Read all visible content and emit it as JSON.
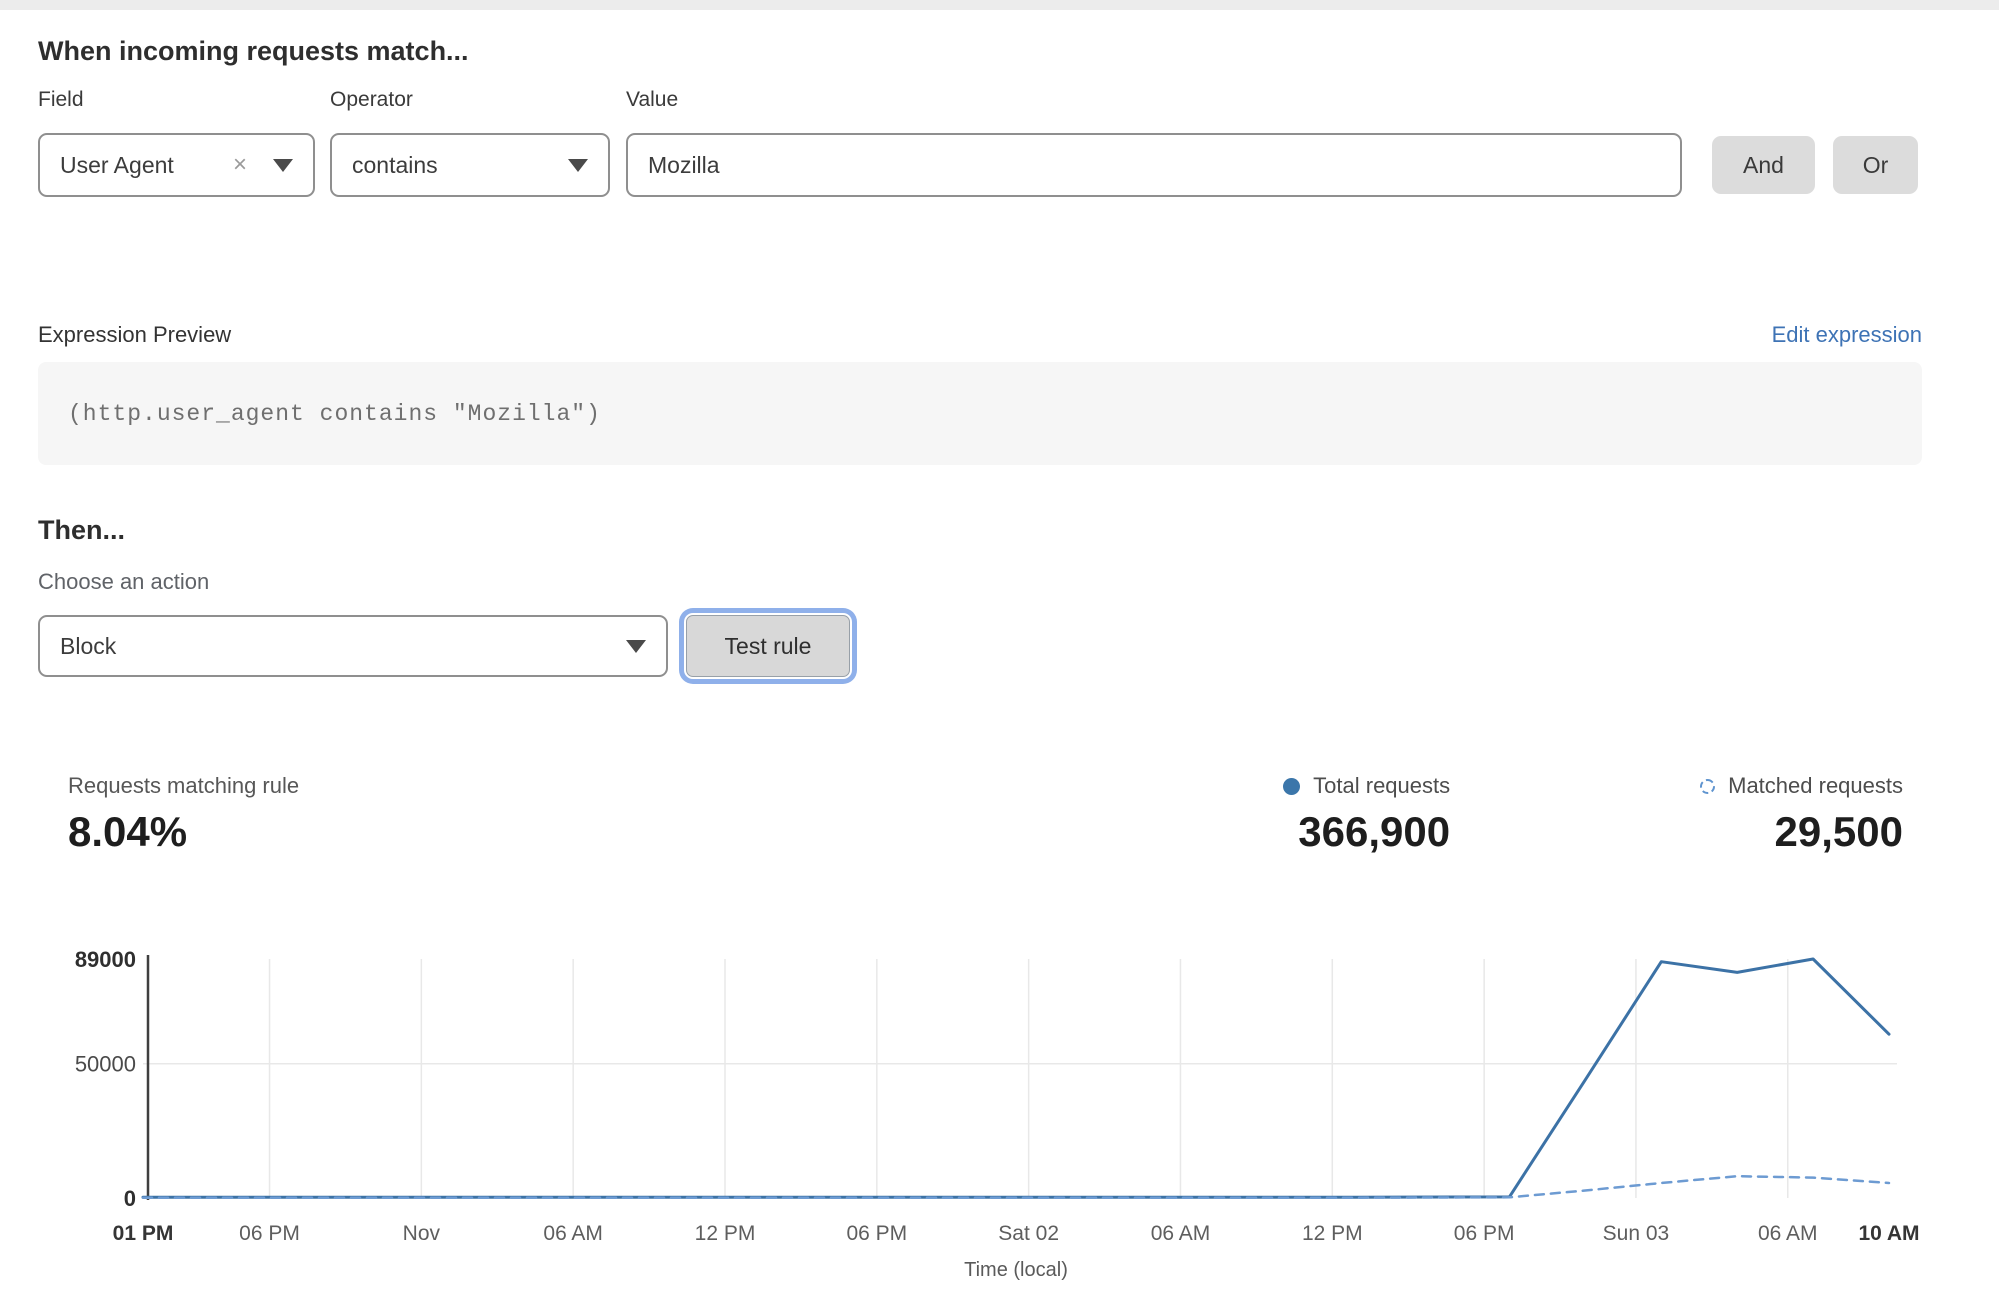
{
  "match_section": {
    "heading": "When incoming requests match...",
    "field": {
      "label": "Field",
      "value": "User Agent",
      "clear_icon": "×"
    },
    "operator": {
      "label": "Operator",
      "value": "contains"
    },
    "value": {
      "label": "Value",
      "value": "Mozilla"
    },
    "and_label": "And",
    "or_label": "Or"
  },
  "expression": {
    "label": "Expression Preview",
    "edit_link": "Edit expression",
    "code": "(http.user_agent contains \"Mozilla\")"
  },
  "then_section": {
    "heading": "Then...",
    "action_label": "Choose an action",
    "action_value": "Block",
    "test_button": "Test rule"
  },
  "stats": {
    "matching": {
      "label": "Requests matching rule",
      "value": "8.04%"
    },
    "total": {
      "label": "Total requests",
      "value": "366,900",
      "color": "#3b76aa",
      "marker": "solid-dot"
    },
    "matched": {
      "label": "Matched requests",
      "value": "29,500",
      "color": "#5f94cf",
      "marker": "dashed-circle"
    }
  },
  "colors": {
    "link": "#3e73b5",
    "focus_ring": "#8fb0ea",
    "total_line": "#3c72a6",
    "matched_line": "#6d9bd2",
    "gridline": "#e8e8e8",
    "axis": "#3f3f3f"
  },
  "chart_data": {
    "type": "line",
    "xlabel": "Time (local)",
    "x_unit": "hours after first tick (01 PM)",
    "x_range_hours": [
      0,
      69
    ],
    "ylim": [
      0,
      89000
    ],
    "grid": "vertical lines at interior time ticks, horizontal line at 50000",
    "legend_position": "above chart, right",
    "yticks": [
      {
        "v": 0,
        "label": "0",
        "bold": true
      },
      {
        "v": 50000,
        "label": "50000",
        "bold": false
      },
      {
        "v": 89000,
        "label": "89000",
        "bold": true
      }
    ],
    "xticks": [
      {
        "h": 0,
        "label": "01 PM",
        "bold": true
      },
      {
        "h": 5,
        "label": "06 PM",
        "bold": false
      },
      {
        "h": 11,
        "label": "Nov",
        "bold": false
      },
      {
        "h": 17,
        "label": "06 AM",
        "bold": false
      },
      {
        "h": 23,
        "label": "12 PM",
        "bold": false
      },
      {
        "h": 29,
        "label": "06 PM",
        "bold": false
      },
      {
        "h": 35,
        "label": "Sat 02",
        "bold": false
      },
      {
        "h": 41,
        "label": "06 AM",
        "bold": false
      },
      {
        "h": 47,
        "label": "12 PM",
        "bold": false
      },
      {
        "h": 53,
        "label": "06 PM",
        "bold": false
      },
      {
        "h": 59,
        "label": "Sun 03",
        "bold": false
      },
      {
        "h": 65,
        "label": "06 AM",
        "bold": false
      },
      {
        "h": 69,
        "label": "10 AM",
        "bold": true
      }
    ],
    "series": [
      {
        "name": "Total requests",
        "style": "solid",
        "color": "#3c72a6",
        "points": [
          [
            0,
            300
          ],
          [
            6,
            300
          ],
          [
            12,
            300
          ],
          [
            18,
            300
          ],
          [
            24,
            300
          ],
          [
            30,
            300
          ],
          [
            36,
            300
          ],
          [
            42,
            300
          ],
          [
            48,
            300
          ],
          [
            54,
            400
          ],
          [
            57,
            44000
          ],
          [
            60,
            88000
          ],
          [
            63,
            84000
          ],
          [
            66,
            89000
          ],
          [
            69,
            61000
          ]
        ]
      },
      {
        "name": "Matched requests",
        "style": "dashed",
        "color": "#6d9bd2",
        "points": [
          [
            0,
            120
          ],
          [
            6,
            120
          ],
          [
            12,
            120
          ],
          [
            18,
            120
          ],
          [
            24,
            120
          ],
          [
            30,
            120
          ],
          [
            36,
            120
          ],
          [
            42,
            120
          ],
          [
            48,
            120
          ],
          [
            54,
            250
          ],
          [
            57,
            2800
          ],
          [
            60,
            5600
          ],
          [
            63,
            8100
          ],
          [
            66,
            7600
          ],
          [
            69,
            5600
          ]
        ]
      }
    ]
  }
}
